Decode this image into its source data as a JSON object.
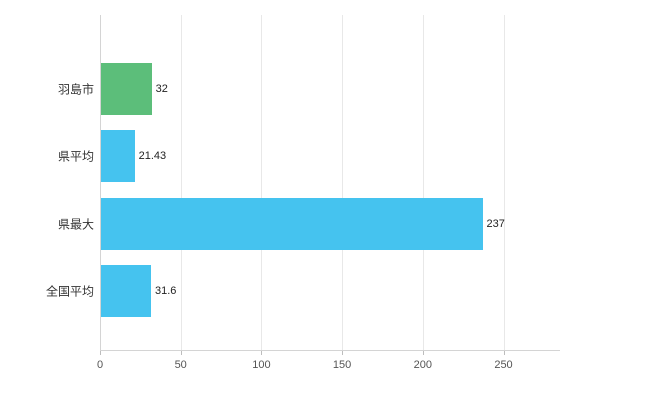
{
  "chart_data": {
    "type": "bar",
    "orientation": "horizontal",
    "title": "",
    "categories": [
      "羽島市",
      "県平均",
      "県最大",
      "全国平均"
    ],
    "values": [
      32,
      21.43,
      237,
      31.6
    ],
    "value_labels": [
      "32",
      "21.43",
      "237",
      "31.6"
    ],
    "bar_colors": [
      "#5cbe7a",
      "#45c3ef",
      "#45c3ef",
      "#45c3ef"
    ],
    "xlim": [
      0,
      285
    ],
    "xticks": [
      0,
      50,
      100,
      150,
      200,
      250
    ],
    "xtick_labels": [
      "0",
      "50",
      "100",
      "150",
      "200",
      "250"
    ],
    "grid": true,
    "legend": "none",
    "background": "#ffffff",
    "colors": {
      "grid": "#e8e8e8",
      "axis": "#d4d4d4",
      "tick": "#bdbdbd",
      "category_label": "#333333",
      "value_label": "#222222",
      "tick_label": "#555555"
    }
  }
}
